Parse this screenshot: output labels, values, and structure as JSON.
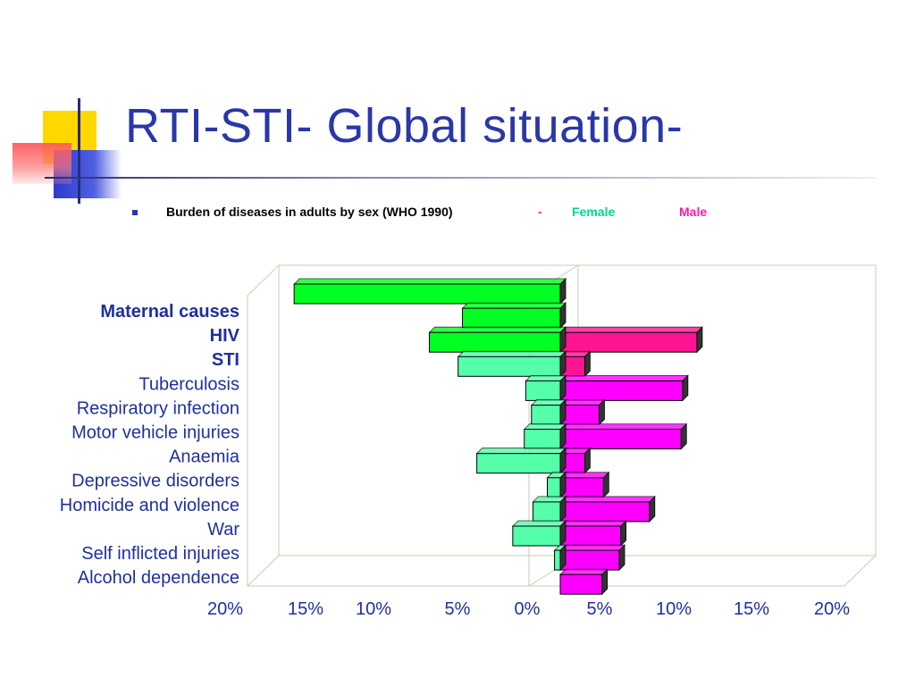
{
  "slide": {
    "title": "RTI-STI- Global situation-",
    "subtitle": "Burden of diseases in adults by sex (WHO 1990)",
    "dash": "-",
    "legend_female": "Female",
    "legend_male": "Male"
  },
  "colors": {
    "title": "#2b37a8",
    "female_highlight": "#00ff22",
    "female": "#55ffaa",
    "male_highlight": "#ff1493",
    "male": "#ff00ff",
    "label_text": "#1f2fa0"
  },
  "chart_data": {
    "type": "bar",
    "orientation": "horizontal-butterfly",
    "categories": [
      "Maternal causes",
      "HIV",
      "STI",
      "Tuberculosis",
      "Respiratory infection",
      "Motor vehicle injuries",
      "Anaemia",
      "Depressive disorders",
      "Homicide and violence",
      "War",
      "Self inflicted injuries",
      "Alcohol dependence"
    ],
    "highlighted_categories": [
      "Maternal causes",
      "HIV",
      "STI"
    ],
    "series": [
      {
        "name": "Female",
        "values": [
          18.5,
          6.8,
          9.1,
          7.1,
          2.4,
          2.0,
          2.5,
          5.8,
          0.9,
          1.9,
          3.3,
          0.4
        ]
      },
      {
        "name": "Male",
        "values": [
          0,
          9.5,
          1.7,
          8.5,
          2.7,
          8.4,
          1.7,
          3.0,
          6.2,
          4.2,
          4.1,
          2.9
        ]
      }
    ],
    "xlim": [
      -20,
      20
    ],
    "xtick_labels": [
      "20%",
      "15%",
      "10%",
      "5%",
      "0%",
      "5%",
      "10%",
      "15%",
      "20%"
    ],
    "grid": false
  }
}
